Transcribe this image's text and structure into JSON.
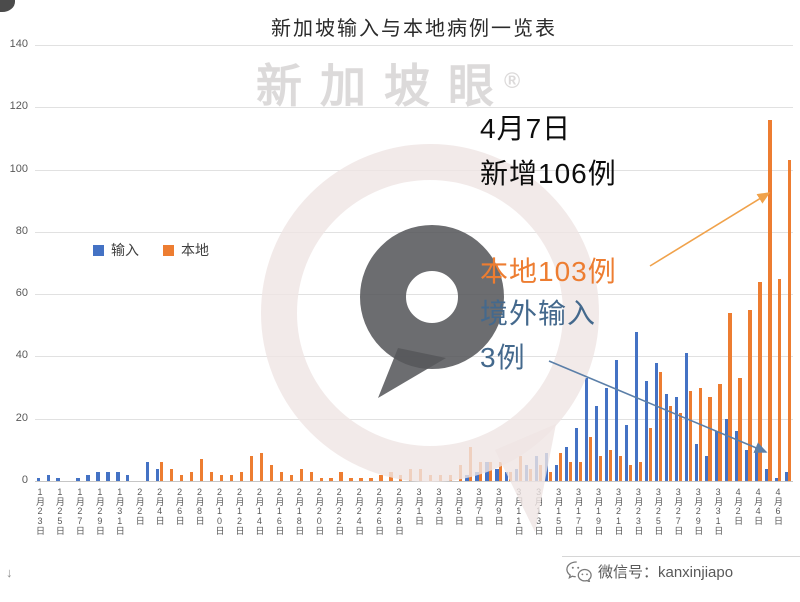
{
  "page": {
    "watermark_text": "新加坡眼",
    "watermark_reg": "®",
    "corner_bottom_glyph": "↓",
    "footer": {
      "wechat_label": "微信号：kanxinjiapo"
    }
  },
  "colors": {
    "imported": "#4472C4",
    "local": "#ED7D31",
    "annotation_orange": "#ED7D31",
    "annotation_blue": "#44698D",
    "arrow_orange": "#F0A24B",
    "arrow_blue": "#5B7FA8",
    "grid": "#E1E1E1"
  },
  "chart_data": {
    "type": "bar",
    "title": "新加坡输入与本地病例一览表",
    "xlabel": "",
    "ylabel": "",
    "ylim": [
      0,
      140
    ],
    "yticks": [
      0,
      20,
      40,
      60,
      80,
      100,
      120,
      140
    ],
    "xtick_every": 2,
    "grid": true,
    "legend_position": "middle-left",
    "categories": [
      "1月23日",
      "1月24日",
      "1月25日",
      "1月26日",
      "1月27日",
      "1月28日",
      "1月29日",
      "1月30日",
      "1月31日",
      "2月1日",
      "2月2日",
      "2月3日",
      "2月4日",
      "2月5日",
      "2月6日",
      "2月7日",
      "2月8日",
      "2月9日",
      "2月10日",
      "2月11日",
      "2月12日",
      "2月13日",
      "2月14日",
      "2月15日",
      "2月16日",
      "2月17日",
      "2月18日",
      "2月19日",
      "2月20日",
      "2月21日",
      "2月22日",
      "2月23日",
      "2月24日",
      "2月25日",
      "2月26日",
      "2月27日",
      "2月28日",
      "2月29日",
      "3月1日",
      "3月2日",
      "3月3日",
      "3月4日",
      "3月5日",
      "3月6日",
      "3月7日",
      "3月8日",
      "3月9日",
      "3月10日",
      "3月11日",
      "3月12日",
      "3月13日",
      "3月14日",
      "3月15日",
      "3月16日",
      "3月17日",
      "3月18日",
      "3月19日",
      "3月20日",
      "3月21日",
      "3月22日",
      "3月23日",
      "3月24日",
      "3月25日",
      "3月26日",
      "3月27日",
      "3月28日",
      "3月29日",
      "3月30日",
      "3月31日",
      "4月1日",
      "4月2日",
      "4月3日",
      "4月4日",
      "4月5日",
      "4月6日",
      "4月7日"
    ],
    "series": [
      {
        "name": "输入",
        "color": "#4472C4",
        "values": [
          1,
          2,
          1,
          0,
          1,
          2,
          3,
          3,
          3,
          2,
          0,
          6,
          4,
          0,
          0,
          0,
          0,
          0,
          0,
          0,
          0,
          0,
          0,
          0,
          0,
          0,
          0,
          0,
          0,
          0,
          0,
          0,
          0,
          0,
          0,
          0,
          0,
          0,
          0,
          0,
          0,
          0,
          0,
          2,
          3,
          6,
          4,
          3,
          4,
          5,
          8,
          9,
          5,
          11,
          17,
          33,
          24,
          30,
          39,
          18,
          48,
          32,
          38,
          28,
          27,
          41,
          12,
          8,
          16,
          20,
          16,
          10,
          11,
          4,
          1,
          3
        ]
      },
      {
        "name": "本地",
        "color": "#ED7D31",
        "values": [
          0,
          0,
          0,
          0,
          0,
          0,
          0,
          0,
          0,
          0,
          0,
          0,
          6,
          4,
          2,
          3,
          7,
          3,
          2,
          2,
          3,
          8,
          9,
          5,
          3,
          2,
          4,
          3,
          1,
          1,
          3,
          1,
          1,
          1,
          2,
          3,
          2,
          4,
          4,
          2,
          2,
          2,
          5,
          11,
          6,
          6,
          6,
          3,
          8,
          4,
          5,
          3,
          9,
          6,
          6,
          14,
          8,
          10,
          8,
          5,
          6,
          17,
          35,
          24,
          22,
          29,
          30,
          27,
          31,
          54,
          33,
          55,
          64,
          116,
          65,
          103
        ]
      }
    ],
    "annotations": {
      "headline_line1": "4月7日",
      "headline_line2": "新增106例",
      "local_callout": "本地103例",
      "imported_callout_line1": "境外输入",
      "imported_callout_line2": "3例"
    }
  }
}
